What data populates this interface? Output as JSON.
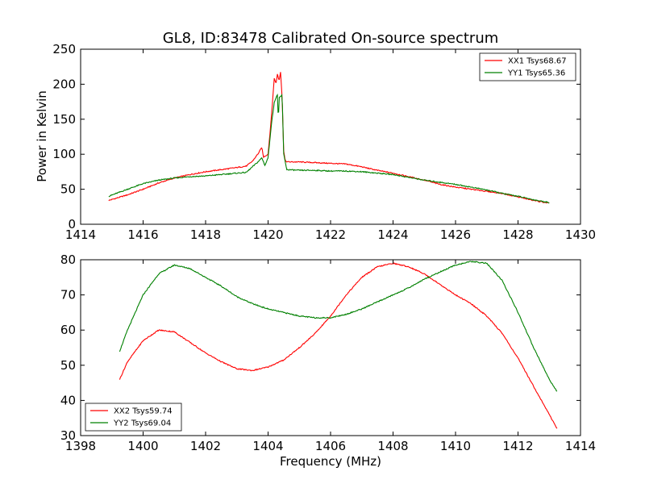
{
  "figure": {
    "title": "GL8, ID:83478 Calibrated On-source spectrum",
    "ylabel": "Power in Kelvin",
    "xlabel": "Frequency (MHz)"
  },
  "chart_data": [
    {
      "type": "line",
      "xlabel": "",
      "ylabel": "Power in Kelvin",
      "xlim": [
        1414,
        1430
      ],
      "ylim": [
        0,
        250
      ],
      "xticks": [
        1414,
        1416,
        1418,
        1420,
        1422,
        1424,
        1426,
        1428,
        1430
      ],
      "yticks": [
        0,
        50,
        100,
        150,
        200,
        250
      ],
      "grid": false,
      "legend_position": "top-right",
      "series": [
        {
          "name": "XX1 Tsys68.67",
          "color": "#ff0000",
          "x": [
            1414.9,
            1415.5,
            1416.0,
            1416.5,
            1417.0,
            1417.5,
            1418.0,
            1418.5,
            1419.0,
            1419.3,
            1419.5,
            1419.7,
            1419.8,
            1419.85,
            1420.0,
            1420.1,
            1420.2,
            1420.25,
            1420.3,
            1420.35,
            1420.4,
            1420.45,
            1420.5,
            1420.55,
            1420.65,
            1421.0,
            1421.5,
            1422.0,
            1422.5,
            1423.0,
            1423.5,
            1424.0,
            1424.5,
            1425.0,
            1425.5,
            1426.0,
            1426.5,
            1427.0,
            1427.5,
            1428.0,
            1428.5,
            1429.0
          ],
          "y": [
            34,
            42,
            50,
            59,
            66,
            71,
            75,
            78,
            81,
            83,
            90,
            102,
            110,
            96,
            100,
            150,
            210,
            200,
            215,
            205,
            218,
            180,
            105,
            90,
            89,
            89,
            88,
            87,
            86,
            82,
            77,
            73,
            68,
            63,
            57,
            53,
            50,
            47,
            44,
            39,
            34,
            30
          ]
        },
        {
          "name": "YY1 Tsys65.36",
          "color": "#008000",
          "x": [
            1414.9,
            1415.5,
            1416.0,
            1416.5,
            1417.0,
            1417.5,
            1418.0,
            1418.5,
            1419.0,
            1419.3,
            1419.5,
            1419.7,
            1419.8,
            1419.9,
            1420.0,
            1420.1,
            1420.2,
            1420.25,
            1420.3,
            1420.33,
            1420.35,
            1420.4,
            1420.45,
            1420.5,
            1420.6,
            1421.0,
            1421.5,
            1422.0,
            1422.5,
            1423.0,
            1423.5,
            1424.0,
            1424.5,
            1425.0,
            1425.5,
            1426.0,
            1426.5,
            1427.0,
            1427.5,
            1428.0,
            1428.5,
            1429.0
          ],
          "y": [
            40,
            50,
            58,
            63,
            66,
            68,
            69,
            71,
            73,
            74,
            82,
            90,
            95,
            84,
            95,
            140,
            175,
            180,
            185,
            145,
            180,
            182,
            185,
            100,
            78,
            77,
            77,
            76,
            76,
            75,
            73,
            71,
            67,
            63,
            60,
            57,
            53,
            49,
            44,
            40,
            35,
            31
          ]
        }
      ]
    },
    {
      "type": "line",
      "xlabel": "Frequency (MHz)",
      "ylabel": "",
      "xlim": [
        1398,
        1414
      ],
      "ylim": [
        30,
        80
      ],
      "xticks": [
        1398,
        1400,
        1402,
        1404,
        1406,
        1408,
        1410,
        1412,
        1414
      ],
      "yticks": [
        30,
        40,
        50,
        60,
        70,
        80
      ],
      "grid": false,
      "legend_position": "bottom-left",
      "series": [
        {
          "name": "XX2 Tsys59.74",
          "color": "#ff0000",
          "x": [
            1399.25,
            1399.5,
            1400.0,
            1400.5,
            1401.0,
            1401.5,
            1402.0,
            1402.5,
            1403.0,
            1403.5,
            1404.0,
            1404.5,
            1405.0,
            1405.5,
            1406.0,
            1406.5,
            1407.0,
            1407.5,
            1408.0,
            1408.5,
            1409.0,
            1409.5,
            1410.0,
            1410.5,
            1411.0,
            1411.5,
            1412.0,
            1412.5,
            1413.0,
            1413.25
          ],
          "y": [
            46,
            51,
            57,
            60,
            59.5,
            56.5,
            53.5,
            51,
            49,
            48.5,
            49.5,
            51.5,
            55,
            59,
            64,
            70,
            75,
            78,
            79,
            78,
            76,
            73,
            70,
            67.5,
            64,
            59,
            52,
            44,
            36,
            32
          ]
        },
        {
          "name": "YY2 Tsys69.04",
          "color": "#008000",
          "x": [
            1399.25,
            1399.5,
            1400.0,
            1400.5,
            1401.0,
            1401.5,
            1402.0,
            1402.5,
            1403.0,
            1403.5,
            1404.0,
            1404.5,
            1405.0,
            1405.5,
            1406.0,
            1406.5,
            1407.0,
            1407.5,
            1408.0,
            1408.5,
            1409.0,
            1409.5,
            1410.0,
            1410.5,
            1411.0,
            1411.5,
            1412.0,
            1412.5,
            1413.0,
            1413.25
          ],
          "y": [
            54,
            60,
            70,
            76,
            78.5,
            77.5,
            75,
            72.5,
            69.5,
            67.5,
            66,
            65,
            64,
            63.5,
            63.5,
            64.5,
            66,
            68,
            70,
            72,
            74.5,
            76.5,
            78.5,
            79.5,
            79,
            74,
            65,
            55,
            46,
            42.5
          ]
        }
      ]
    }
  ]
}
